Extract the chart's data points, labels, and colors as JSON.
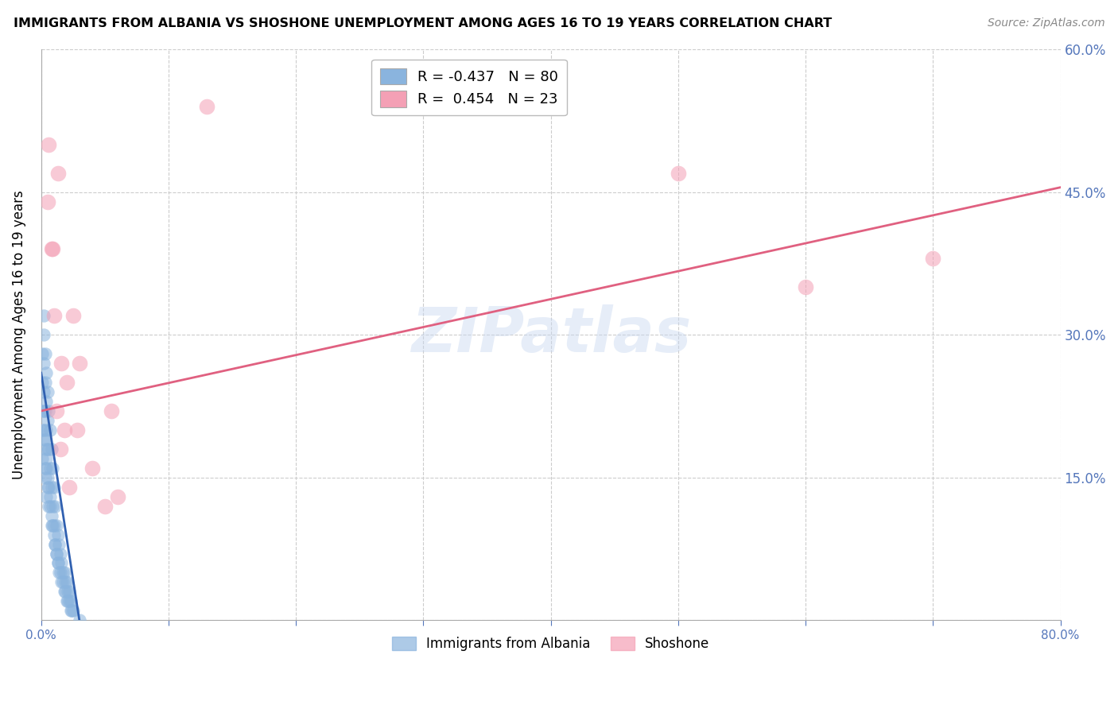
{
  "title": "IMMIGRANTS FROM ALBANIA VS SHOSHONE UNEMPLOYMENT AMONG AGES 16 TO 19 YEARS CORRELATION CHART",
  "source": "Source: ZipAtlas.com",
  "ylabel": "Unemployment Among Ages 16 to 19 years",
  "xlim": [
    0,
    0.8
  ],
  "ylim": [
    0,
    0.6
  ],
  "yticks": [
    0.0,
    0.15,
    0.3,
    0.45,
    0.6
  ],
  "ytick_labels_right": [
    "",
    "15.0%",
    "30.0%",
    "45.0%",
    "60.0%"
  ],
  "xticks": [
    0.0,
    0.1,
    0.2,
    0.3,
    0.4,
    0.5,
    0.6,
    0.7,
    0.8
  ],
  "xtick_labels": [
    "0.0%",
    "",
    "",
    "",
    "",
    "",
    "",
    "",
    "80.0%"
  ],
  "legend_blue_r": "-0.437",
  "legend_blue_n": "80",
  "legend_pink_r": "0.454",
  "legend_pink_n": "23",
  "blue_color": "#8ab4de",
  "pink_color": "#f4a0b5",
  "blue_line_color": "#3060b0",
  "pink_line_color": "#e06080",
  "watermark": "ZIPatlas",
  "blue_x": [
    0.001,
    0.001,
    0.001,
    0.002,
    0.002,
    0.002,
    0.002,
    0.002,
    0.003,
    0.003,
    0.003,
    0.003,
    0.003,
    0.004,
    0.004,
    0.004,
    0.004,
    0.005,
    0.005,
    0.005,
    0.005,
    0.006,
    0.006,
    0.006,
    0.007,
    0.007,
    0.007,
    0.008,
    0.008,
    0.008,
    0.009,
    0.009,
    0.01,
    0.01,
    0.011,
    0.011,
    0.012,
    0.012,
    0.013,
    0.013,
    0.014,
    0.015,
    0.016,
    0.017,
    0.018,
    0.019,
    0.02,
    0.021,
    0.022,
    0.023,
    0.001,
    0.001,
    0.002,
    0.002,
    0.003,
    0.003,
    0.004,
    0.004,
    0.005,
    0.006,
    0.007,
    0.008,
    0.009,
    0.01,
    0.011,
    0.012,
    0.013,
    0.014,
    0.015,
    0.016,
    0.017,
    0.018,
    0.019,
    0.02,
    0.021,
    0.022,
    0.023,
    0.024,
    0.025,
    0.03
  ],
  "blue_y": [
    0.28,
    0.25,
    0.22,
    0.32,
    0.3,
    0.27,
    0.24,
    0.2,
    0.28,
    0.25,
    0.22,
    0.19,
    0.16,
    0.26,
    0.23,
    0.2,
    0.17,
    0.24,
    0.21,
    0.18,
    0.14,
    0.22,
    0.18,
    0.14,
    0.2,
    0.16,
    0.12,
    0.18,
    0.14,
    0.1,
    0.16,
    0.12,
    0.14,
    0.1,
    0.12,
    0.08,
    0.1,
    0.07,
    0.09,
    0.06,
    0.08,
    0.07,
    0.06,
    0.05,
    0.05,
    0.04,
    0.04,
    0.03,
    0.03,
    0.02,
    0.2,
    0.17,
    0.22,
    0.19,
    0.18,
    0.15,
    0.16,
    0.13,
    0.15,
    0.12,
    0.13,
    0.11,
    0.1,
    0.09,
    0.08,
    0.07,
    0.06,
    0.05,
    0.05,
    0.04,
    0.04,
    0.03,
    0.03,
    0.02,
    0.02,
    0.02,
    0.01,
    0.01,
    0.01,
    0.0
  ],
  "pink_x": [
    0.005,
    0.006,
    0.009,
    0.013,
    0.016,
    0.02,
    0.025,
    0.03,
    0.055,
    0.06,
    0.13,
    0.5,
    0.6,
    0.7,
    0.008,
    0.01,
    0.012,
    0.015,
    0.018,
    0.022,
    0.028,
    0.04,
    0.05
  ],
  "pink_y": [
    0.44,
    0.5,
    0.39,
    0.47,
    0.27,
    0.25,
    0.32,
    0.27,
    0.22,
    0.13,
    0.54,
    0.47,
    0.35,
    0.38,
    0.39,
    0.32,
    0.22,
    0.18,
    0.2,
    0.14,
    0.2,
    0.16,
    0.12
  ],
  "pink_trend_x0": 0.0,
  "pink_trend_y0": 0.22,
  "pink_trend_x1": 0.8,
  "pink_trend_y1": 0.455,
  "blue_trend_x0": 0.0,
  "blue_trend_y0": 0.26,
  "blue_trend_x1": 0.03,
  "blue_trend_y1": 0.0
}
